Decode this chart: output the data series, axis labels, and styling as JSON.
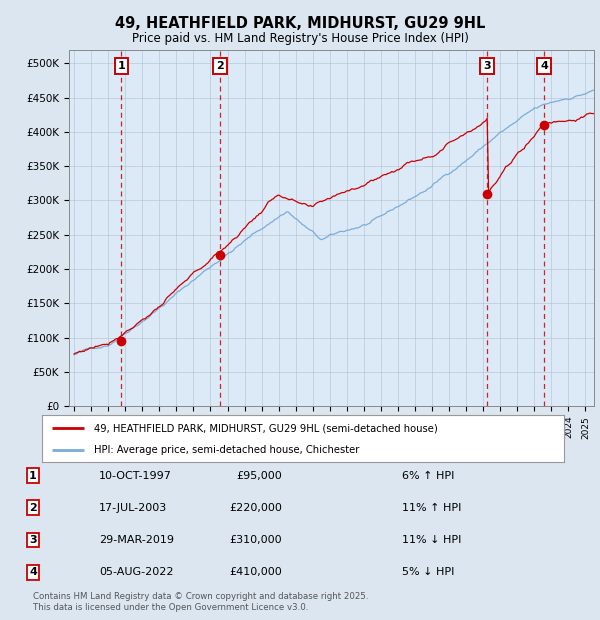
{
  "title1": "49, HEATHFIELD PARK, MIDHURST, GU29 9HL",
  "title2": "Price paid vs. HM Land Registry's House Price Index (HPI)",
  "ylabel_ticks": [
    "£0",
    "£50K",
    "£100K",
    "£150K",
    "£200K",
    "£250K",
    "£300K",
    "£350K",
    "£400K",
    "£450K",
    "£500K"
  ],
  "ytick_values": [
    0,
    50000,
    100000,
    150000,
    200000,
    250000,
    300000,
    350000,
    400000,
    450000,
    500000
  ],
  "ylim": [
    0,
    520000
  ],
  "xlim_start": 1994.7,
  "xlim_end": 2025.5,
  "sale_dates": [
    1997.78,
    2003.54,
    2019.24,
    2022.59
  ],
  "sale_prices": [
    95000,
    220000,
    310000,
    410000
  ],
  "sale_labels": [
    "1",
    "2",
    "3",
    "4"
  ],
  "vline_color": "#cc0000",
  "sale_marker_color": "#cc0000",
  "legend_red_label": "49, HEATHFIELD PARK, MIDHURST, GU29 9HL (semi-detached house)",
  "legend_blue_label": "HPI: Average price, semi-detached house, Chichester",
  "table_rows": [
    [
      "1",
      "10-OCT-1997",
      "£95,000",
      "6% ↑ HPI"
    ],
    [
      "2",
      "17-JUL-2003",
      "£220,000",
      "11% ↑ HPI"
    ],
    [
      "3",
      "29-MAR-2019",
      "£310,000",
      "11% ↓ HPI"
    ],
    [
      "4",
      "05-AUG-2022",
      "£410,000",
      "5% ↓ HPI"
    ]
  ],
  "footnote1": "Contains HM Land Registry data © Crown copyright and database right 2025.",
  "footnote2": "This data is licensed under the Open Government Licence v3.0.",
  "bg_color": "#dce6f1",
  "plot_bg_color": "#dce9f7",
  "grid_color": "#aabbcc",
  "red_line_color": "#cc0000",
  "blue_line_color": "#7aadda"
}
